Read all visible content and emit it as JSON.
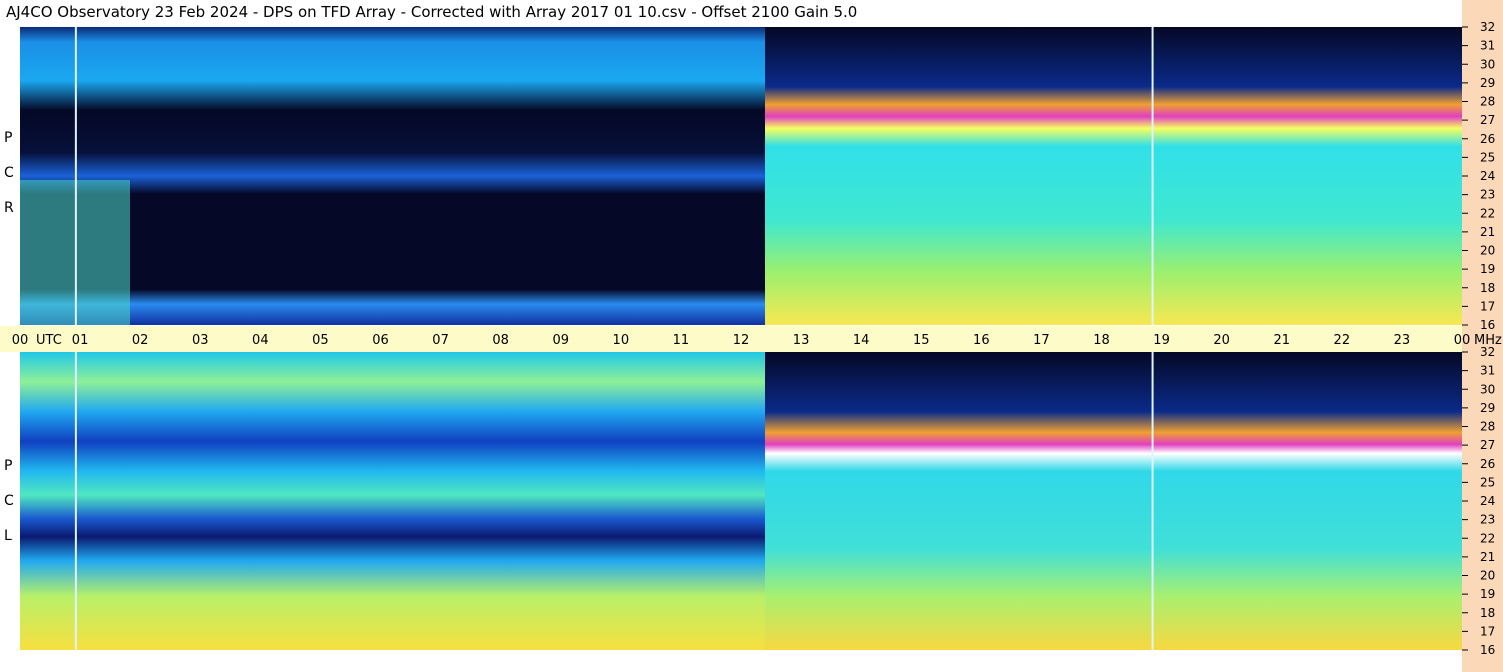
{
  "title": "AJ4CO Observatory  23 Feb 2024  -  DPS on TFD Array  -  Corrected with Array 2017 01 10.csv  -  Offset 2100  Gain 5.0",
  "colors": {
    "panel_bg": "#fdfcc8",
    "right_strip": "#fbd8b8",
    "marker_line": "#dff4ff"
  },
  "chart_data": {
    "type": "heatmap",
    "title": "AJ4CO Observatory  23 Feb 2024  -  DPS on TFD Array  -  Corrected with Array 2017 01 10.csv  -  Offset 2100  Gain 5.0",
    "x_axis": {
      "label": "UTC",
      "unit_label": "MHz",
      "range": [
        0,
        24
      ],
      "ticks": [
        "00",
        "01",
        "02",
        "03",
        "04",
        "05",
        "06",
        "07",
        "08",
        "09",
        "10",
        "11",
        "12",
        "13",
        "14",
        "15",
        "16",
        "17",
        "18",
        "19",
        "20",
        "21",
        "22",
        "23",
        "00"
      ]
    },
    "y_axis": {
      "label": "MHz",
      "range": [
        16,
        32
      ],
      "ticks": [
        "32",
        "31",
        "30",
        "29",
        "28",
        "27",
        "26",
        "25",
        "24",
        "23",
        "22",
        "21",
        "20",
        "19",
        "18",
        "17",
        "16"
      ]
    },
    "marker_times_utc": [
      0.93,
      18.85
    ],
    "panels": [
      {
        "name": "RCP",
        "letters": [
          "P",
          "C",
          "R"
        ]
      },
      {
        "name": "LCP",
        "letters": [
          "P",
          "C",
          "L"
        ]
      }
    ]
  }
}
